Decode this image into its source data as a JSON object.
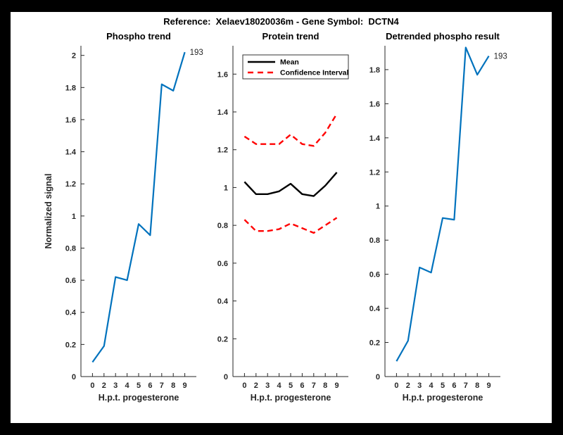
{
  "figure": {
    "title": "Reference:  Xelaev18020036m - Gene Symbol:  DCTN4",
    "frame_color": "#000000",
    "canvas_color": "#ffffff"
  },
  "colors": {
    "matlab_blue": "#0072BD",
    "ci_red": "#ff0000",
    "mean_black": "#000000",
    "axis": "#262626"
  },
  "chart_data": [
    {
      "id": "phospho-trend",
      "type": "line",
      "title": "Phospho trend",
      "xlabel": "H.p.t. progesterone",
      "ylabel": "Normalized signal",
      "x_ticklabels": [
        "0",
        "2",
        "3",
        "4",
        "5",
        "6",
        "7",
        "8",
        "9"
      ],
      "y_ticklabels": [
        "0",
        "0.2",
        "0.4",
        "0.6",
        "0.8",
        "1",
        "1.2",
        "1.4",
        "1.6",
        "1.8",
        "2"
      ],
      "xlim": [
        0,
        10
      ],
      "ylim": [
        0,
        2.06
      ],
      "grid": false,
      "series": [
        {
          "name": "phospho-signal",
          "color": "#0072BD",
          "dash": "none",
          "width": 2.2,
          "values": [
            0.09,
            0.19,
            0.62,
            0.6,
            0.95,
            0.88,
            1.82,
            1.78,
            2.02
          ]
        }
      ],
      "annotation": {
        "text": "193"
      }
    },
    {
      "id": "protein-trend",
      "type": "line",
      "title": "Protein trend",
      "xlabel": "H.p.t. progesterone",
      "ylabel": "",
      "x_ticklabels": [
        "0",
        "2",
        "3",
        "4",
        "5",
        "6",
        "7",
        "8",
        "9"
      ],
      "y_ticklabels": [
        "0",
        "0.2",
        "0.4",
        "0.6",
        "0.8",
        "1",
        "1.2",
        "1.4",
        "1.6"
      ],
      "xlim": [
        0,
        10
      ],
      "ylim": [
        0,
        1.75
      ],
      "grid": false,
      "legend": {
        "position": "top-left",
        "entries": [
          {
            "label": "Mean",
            "color": "#000000",
            "dash": "none"
          },
          {
            "label": "Confidence Interval",
            "color": "#ff0000",
            "dash": "dashed"
          }
        ]
      },
      "series": [
        {
          "name": "ci-upper",
          "color": "#ff0000",
          "dash": "dashed",
          "width": 2.4,
          "values": [
            1.27,
            1.23,
            1.23,
            1.23,
            1.28,
            1.23,
            1.22,
            1.29,
            1.39
          ]
        },
        {
          "name": "ci-lower",
          "color": "#ff0000",
          "dash": "dashed",
          "width": 2.4,
          "values": [
            0.83,
            0.77,
            0.77,
            0.78,
            0.81,
            0.785,
            0.76,
            0.8,
            0.84
          ]
        },
        {
          "name": "mean",
          "color": "#000000",
          "dash": "none",
          "width": 2.4,
          "values": [
            1.03,
            0.965,
            0.965,
            0.98,
            1.02,
            0.965,
            0.955,
            1.01,
            1.08
          ]
        }
      ]
    },
    {
      "id": "detrended-phospho-result",
      "type": "line",
      "title": "Detrended phospho result",
      "xlabel": "H.p.t. progesterone",
      "ylabel": "",
      "x_ticklabels": [
        "0",
        "2",
        "3",
        "4",
        "5",
        "6",
        "7",
        "8",
        "9"
      ],
      "y_ticklabels": [
        "0",
        "0.2",
        "0.4",
        "0.6",
        "0.8",
        "1",
        "1.2",
        "1.4",
        "1.6",
        "1.8"
      ],
      "xlim": [
        0,
        10
      ],
      "ylim": [
        0,
        1.94
      ],
      "grid": false,
      "series": [
        {
          "name": "detrended-signal",
          "color": "#0072BD",
          "dash": "none",
          "width": 2.2,
          "values": [
            0.09,
            0.21,
            0.64,
            0.61,
            0.93,
            0.92,
            1.93,
            1.77,
            1.88
          ]
        }
      ],
      "annotation": {
        "text": "193"
      }
    }
  ]
}
